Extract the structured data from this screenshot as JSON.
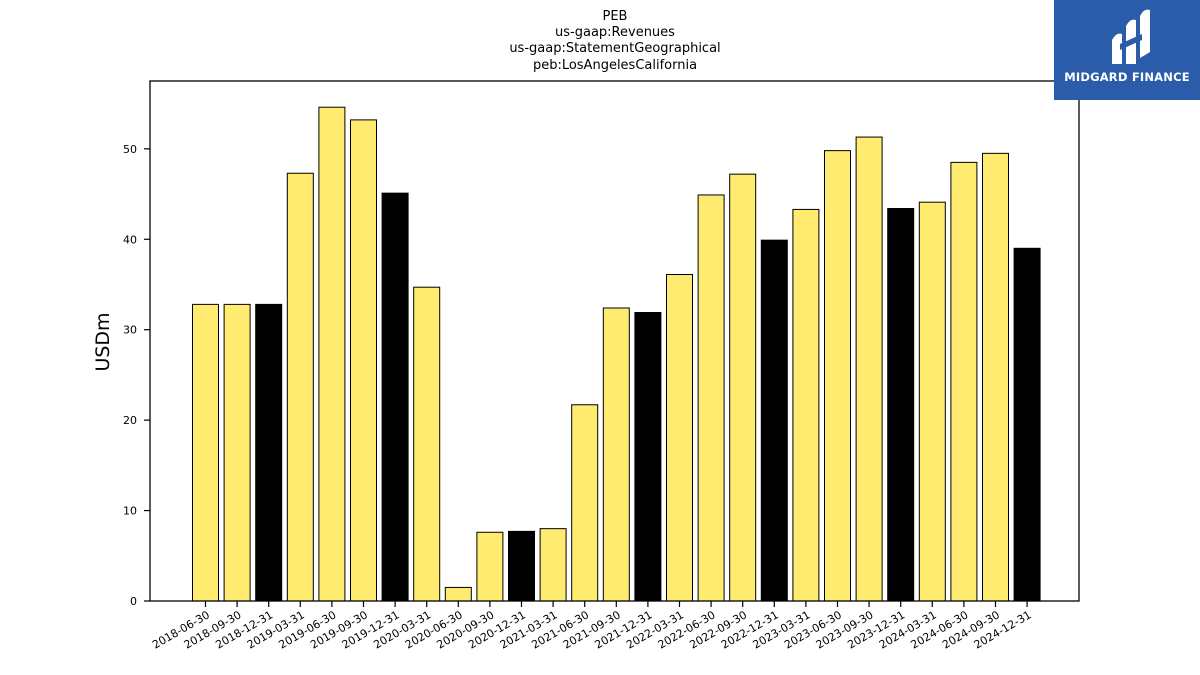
{
  "chart_data": {
    "type": "bar",
    "title_lines": [
      "PEB",
      "us-gaap:Revenues",
      "us-gaap:StatementGeographical",
      "peb:LosAngelesCalifornia"
    ],
    "xlabel": "",
    "ylabel": "USDm",
    "ylim": [
      0,
      57.5
    ],
    "yticks": [
      0,
      10,
      20,
      30,
      40,
      50
    ],
    "grid": false,
    "colors": {
      "quarter": "#ffeb70",
      "year_end": "#000000",
      "edge": "#000000"
    },
    "categories": [
      "2018-06-30",
      "2018-09-30",
      "2018-12-31",
      "2019-03-31",
      "2019-06-30",
      "2019-09-30",
      "2019-12-31",
      "2020-03-31",
      "2020-06-30",
      "2020-09-30",
      "2020-12-31",
      "2021-03-31",
      "2021-06-30",
      "2021-09-30",
      "2021-12-31",
      "2022-03-31",
      "2022-06-30",
      "2022-09-30",
      "2022-12-31",
      "2023-03-31",
      "2023-06-30",
      "2023-09-30",
      "2023-12-31",
      "2024-03-31",
      "2024-06-30",
      "2024-09-30",
      "2024-12-31"
    ],
    "values": [
      32.8,
      32.8,
      32.8,
      47.3,
      54.6,
      53.2,
      45.1,
      34.7,
      1.5,
      7.6,
      7.7,
      8.0,
      21.7,
      32.4,
      31.9,
      36.1,
      44.9,
      47.2,
      39.9,
      43.3,
      49.8,
      51.3,
      43.4,
      44.1,
      48.5,
      49.5,
      39.0
    ]
  },
  "logo": {
    "name": "midgard-logo-icon",
    "text": "MIDGARD FINANCE"
  }
}
